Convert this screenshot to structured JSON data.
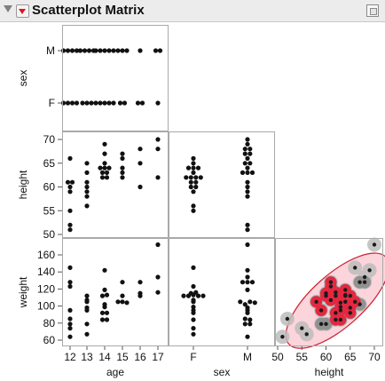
{
  "panel": {
    "title": "Scatterplot Matrix",
    "icons": {
      "disclosure": "disclosure-triangle-icon",
      "menu": "red-triangle-menu-icon",
      "popout": "popout-icon"
    }
  },
  "chart_data": {
    "type": "scatter",
    "title": "Scatterplot Matrix",
    "variables": [
      "sex",
      "height",
      "weight"
    ],
    "x_variables": [
      "age",
      "sex",
      "height"
    ],
    "axes": {
      "age": {
        "label": "age",
        "ticks": [
          "12",
          "13",
          "14",
          "15",
          "16",
          "17"
        ]
      },
      "sex": {
        "label": "sex",
        "ticks": [
          "F",
          "M"
        ]
      },
      "height": {
        "label": "height",
        "ticks": [
          "50",
          "55",
          "60",
          "65",
          "70"
        ],
        "range": [
          50,
          71
        ]
      },
      "weight": {
        "label": "weight",
        "ticks": [
          "60",
          "80",
          "100",
          "120",
          "140",
          "160"
        ],
        "range": [
          60,
          172
        ]
      }
    },
    "grid": false,
    "legend": "none",
    "colors": {
      "points": "#111111",
      "ellipse_fill": "#f7b2bd",
      "ellipse_stroke": "#cc2233",
      "density_light": "#bdbdbd",
      "density_dark": "#8c8c8c",
      "density_core": "#e8233c",
      "panel_border": "#a9a9a9"
    },
    "records": [
      {
        "age": 12,
        "sex": "F",
        "height": 59,
        "weight": 95
      },
      {
        "age": 12,
        "sex": "F",
        "height": 61,
        "weight": 123
      },
      {
        "age": 12,
        "sex": "F",
        "height": 55,
        "weight": 74
      },
      {
        "age": 12,
        "sex": "F",
        "height": 66,
        "weight": 145
      },
      {
        "age": 12,
        "sex": "M",
        "height": 60,
        "weight": 79
      },
      {
        "age": 12,
        "sex": "M",
        "height": 61,
        "weight": 128
      },
      {
        "age": 12,
        "sex": "M",
        "height": 51,
        "weight": 64
      },
      {
        "age": 12,
        "sex": "M",
        "height": 52,
        "weight": 85
      },
      {
        "age": 13,
        "sex": "F",
        "height": 60,
        "weight": 112
      },
      {
        "age": 13,
        "sex": "F",
        "height": 61,
        "weight": 107
      },
      {
        "age": 13,
        "sex": "F",
        "height": 56,
        "weight": 67
      },
      {
        "age": 13,
        "sex": "M",
        "height": 65,
        "weight": 98
      },
      {
        "age": 13,
        "sex": "M",
        "height": 58,
        "weight": 105
      },
      {
        "age": 13,
        "sex": "M",
        "height": 63,
        "weight": 95
      },
      {
        "age": 13,
        "sex": "M",
        "height": 59,
        "weight": 79
      },
      {
        "age": 14,
        "sex": "F",
        "height": 62,
        "weight": 92
      },
      {
        "age": 14,
        "sex": "F",
        "height": 64,
        "weight": 112
      },
      {
        "age": 14,
        "sex": "F",
        "height": 63,
        "weight": 99
      },
      {
        "age": 14,
        "sex": "F",
        "height": 62,
        "weight": 84
      },
      {
        "age": 14,
        "sex": "F",
        "height": 64,
        "weight": 113
      },
      {
        "age": 14,
        "sex": "M",
        "height": 65,
        "weight": 92
      },
      {
        "age": 14,
        "sex": "M",
        "height": 64,
        "weight": 119
      },
      {
        "age": 14,
        "sex": "M",
        "height": 69,
        "weight": 142
      },
      {
        "age": 14,
        "sex": "M",
        "height": 63,
        "weight": 84
      },
      {
        "age": 14,
        "sex": "M",
        "height": 67,
        "weight": 102
      },
      {
        "age": 15,
        "sex": "F",
        "height": 62,
        "weight": 112
      },
      {
        "age": 15,
        "sex": "F",
        "height": 64,
        "weight": 105
      },
      {
        "age": 15,
        "sex": "M",
        "height": 67,
        "weight": 128
      },
      {
        "age": 15,
        "sex": "M",
        "height": 66,
        "weight": 105
      },
      {
        "age": 15,
        "sex": "M",
        "height": 63,
        "weight": 104
      },
      {
        "age": 16,
        "sex": "F",
        "height": 60,
        "weight": 115
      },
      {
        "age": 16,
        "sex": "F",
        "height": 65,
        "weight": 112
      },
      {
        "age": 16,
        "sex": "M",
        "height": 68,
        "weight": 128
      },
      {
        "age": 17,
        "sex": "F",
        "height": 62,
        "weight": 116
      },
      {
        "age": 17,
        "sex": "M",
        "height": 70,
        "weight": 172
      },
      {
        "age": 17,
        "sex": "M",
        "height": 68,
        "weight": 134
      }
    ]
  }
}
